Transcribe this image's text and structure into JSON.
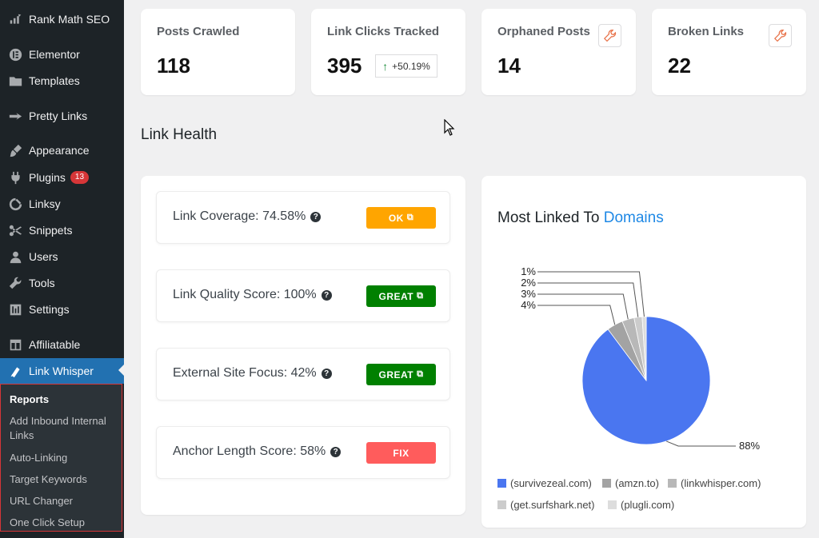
{
  "sidebar": {
    "items": [
      {
        "label": "Rank Math SEO",
        "icon": "rank-math-icon"
      },
      {
        "label": "Elementor",
        "icon": "elementor-icon"
      },
      {
        "label": "Templates",
        "icon": "folder-icon"
      },
      {
        "label": "Pretty Links",
        "icon": "pretty-links-icon"
      },
      {
        "label": "Appearance",
        "icon": "paintbrush-icon"
      },
      {
        "label": "Plugins",
        "icon": "plugin-icon",
        "badge": "13"
      },
      {
        "label": "Linksy",
        "icon": "linksy-icon"
      },
      {
        "label": "Snippets",
        "icon": "scissors-icon"
      },
      {
        "label": "Users",
        "icon": "user-icon"
      },
      {
        "label": "Tools",
        "icon": "wrench-icon"
      },
      {
        "label": "Settings",
        "icon": "settings-icon"
      },
      {
        "label": "Affiliatable",
        "icon": "table-icon"
      },
      {
        "label": "Link Whisper",
        "icon": "link-whisper-icon",
        "active": true
      }
    ],
    "submenu": [
      "Reports",
      "Add Inbound Internal Links",
      "Auto-Linking",
      "Target Keywords",
      "URL Changer",
      "One Click Setup"
    ]
  },
  "stats": [
    {
      "title": "Posts Crawled",
      "value": "118"
    },
    {
      "title": "Link Clicks Tracked",
      "value": "395",
      "delta": "+50.19%"
    },
    {
      "title": "Orphaned Posts",
      "value": "14"
    },
    {
      "title": "Broken Links",
      "value": "22"
    }
  ],
  "link_health": {
    "title": "Link Health",
    "rows": [
      {
        "label": "Link Coverage: 74.58%",
        "status": "OK",
        "color": "#ffa500"
      },
      {
        "label": "Link Quality Score: 100%",
        "status": "GREAT",
        "color": "#008000"
      },
      {
        "label": "External Site Focus: 42%",
        "status": "GREAT",
        "color": "#008000"
      },
      {
        "label": "Anchor Length Score: 58%",
        "status": "FIX",
        "color": "#ff5c5c"
      }
    ]
  },
  "domains_chart": {
    "title_prefix": "Most Linked To",
    "title_highlight": "Domains",
    "accent": "#1e88e5"
  },
  "chart_data": {
    "type": "pie",
    "title": "Most Linked To Domains",
    "slices": [
      {
        "label": "(survivezeal.com)",
        "value": 88,
        "color": "#4a76f0",
        "text": "88%"
      },
      {
        "label": "(amzn.to)",
        "value": 4,
        "color": "#a3a3a3",
        "text": "4%"
      },
      {
        "label": "(linkwhisper.com)",
        "value": 3,
        "color": "#b8b8b8",
        "text": "3%"
      },
      {
        "label": "(get.surfshark.net)",
        "value": 2,
        "color": "#cccccc",
        "text": "2%"
      },
      {
        "label": "(plugli.com)",
        "value": 1,
        "color": "#dddddd",
        "text": "1%"
      }
    ],
    "legend_position": "bottom"
  }
}
